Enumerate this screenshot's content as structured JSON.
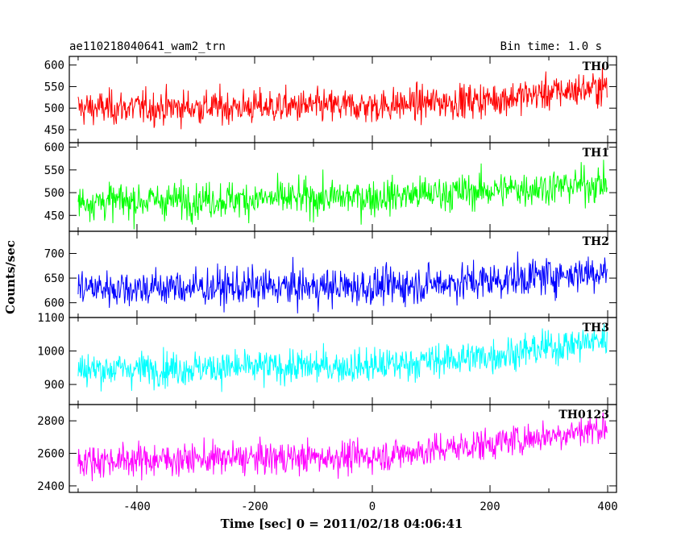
{
  "chart_data": {
    "type": "line",
    "header_left": "ae110218040641_wam2_trn",
    "header_right": "Bin time: 1.0 s",
    "xlabel": "Time [sec] 0 = 2011/02/18 04:06:41",
    "ylabel": "Counts/sec",
    "xlim": [
      -515,
      415
    ],
    "x_ticks": [
      -400,
      -200,
      0,
      200,
      400
    ],
    "x_range": [
      -500,
      399
    ],
    "grid": false,
    "panels": [
      {
        "name": "TH0",
        "color": "#ff0000",
        "ylim": [
          420,
          620
        ],
        "yticks": [
          450,
          500,
          550,
          600
        ],
        "trend": [
          [
            -500,
            500
          ],
          [
            0,
            505
          ],
          [
            200,
            520
          ],
          [
            400,
            550
          ]
        ],
        "noise": 28
      },
      {
        "name": "TH1",
        "color": "#00ff00",
        "ylim": [
          415,
          610
        ],
        "yticks": [
          450,
          500,
          550,
          600
        ],
        "trend": [
          [
            -500,
            480
          ],
          [
            0,
            490
          ],
          [
            200,
            505
          ],
          [
            400,
            520
          ]
        ],
        "noise": 28
      },
      {
        "name": "TH2",
        "color": "#0000ff",
        "ylim": [
          570,
          745
        ],
        "yticks": [
          600,
          650,
          700
        ],
        "trend": [
          [
            -500,
            630
          ],
          [
            0,
            632
          ],
          [
            200,
            645
          ],
          [
            400,
            665
          ]
        ],
        "noise": 27
      },
      {
        "name": "TH3",
        "color": "#00ffff",
        "ylim": [
          840,
          1100
        ],
        "yticks": [
          900,
          1000,
          1100
        ],
        "trend": [
          [
            -500,
            945
          ],
          [
            0,
            955
          ],
          [
            200,
            985
          ],
          [
            400,
            1035
          ]
        ],
        "noise": 36
      },
      {
        "name": "TH0123",
        "color": "#ff00ff",
        "ylim": [
          2360,
          2900
        ],
        "yticks": [
          2400,
          2600,
          2800
        ],
        "trend": [
          [
            -500,
            2555
          ],
          [
            0,
            2580
          ],
          [
            200,
            2660
          ],
          [
            400,
            2760
          ]
        ],
        "noise": 70
      }
    ]
  }
}
